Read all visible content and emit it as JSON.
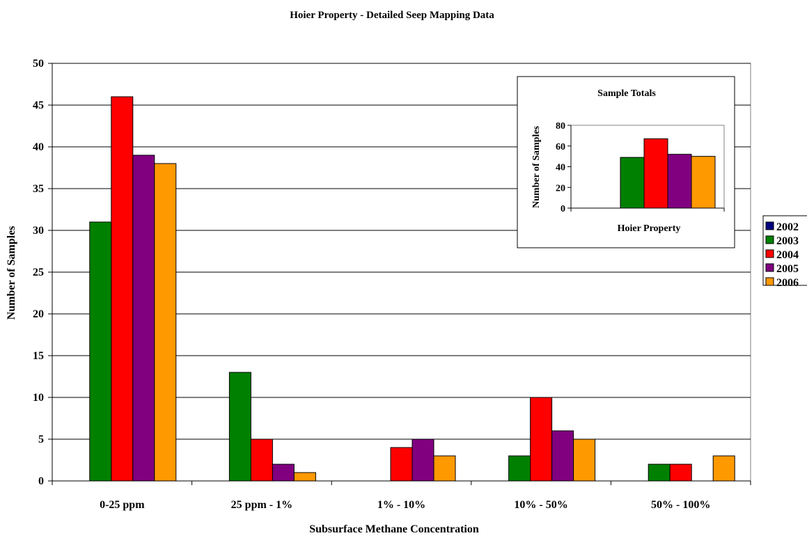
{
  "chart_data": [
    {
      "type": "bar",
      "title": "Hoier Property - Detailed Seep Mapping Data",
      "xlabel": "Subsurface Methane Concentration",
      "ylabel": "Number of Samples",
      "ylim": [
        0,
        50
      ],
      "yticks": [
        0,
        5,
        10,
        15,
        20,
        25,
        30,
        35,
        40,
        45,
        50
      ],
      "grid": true,
      "legend_position": "right",
      "categories": [
        "0-25 ppm",
        "25 ppm - 1%",
        "1% - 10%",
        "10% - 50%",
        "50% - 100%"
      ],
      "series": [
        {
          "name": "2002",
          "color": "#000080",
          "values": [
            0,
            0,
            0,
            0,
            0
          ]
        },
        {
          "name": "2003",
          "color": "#008000",
          "values": [
            31,
            13,
            0,
            3,
            2
          ]
        },
        {
          "name": "2004",
          "color": "#ff0000",
          "values": [
            46,
            5,
            4,
            10,
            2
          ]
        },
        {
          "name": "2005",
          "color": "#800080",
          "values": [
            39,
            2,
            5,
            6,
            0
          ]
        },
        {
          "name": "2006",
          "color": "#ff9900",
          "values": [
            38,
            1,
            3,
            5,
            3
          ]
        }
      ]
    },
    {
      "type": "bar",
      "title": "Sample Totals",
      "xlabel": "Hoier Property",
      "ylabel": "Number of Samples",
      "ylim": [
        0,
        80
      ],
      "yticks": [
        0,
        20,
        40,
        60,
        80
      ],
      "grid": false,
      "categories": [
        "Hoier Property"
      ],
      "series": [
        {
          "name": "2002",
          "color": "#000080",
          "values": [
            0
          ]
        },
        {
          "name": "2003",
          "color": "#008000",
          "values": [
            49
          ]
        },
        {
          "name": "2004",
          "color": "#ff0000",
          "values": [
            67
          ]
        },
        {
          "name": "2005",
          "color": "#800080",
          "values": [
            52
          ]
        },
        {
          "name": "2006",
          "color": "#ff9900",
          "values": [
            50
          ]
        }
      ]
    }
  ]
}
